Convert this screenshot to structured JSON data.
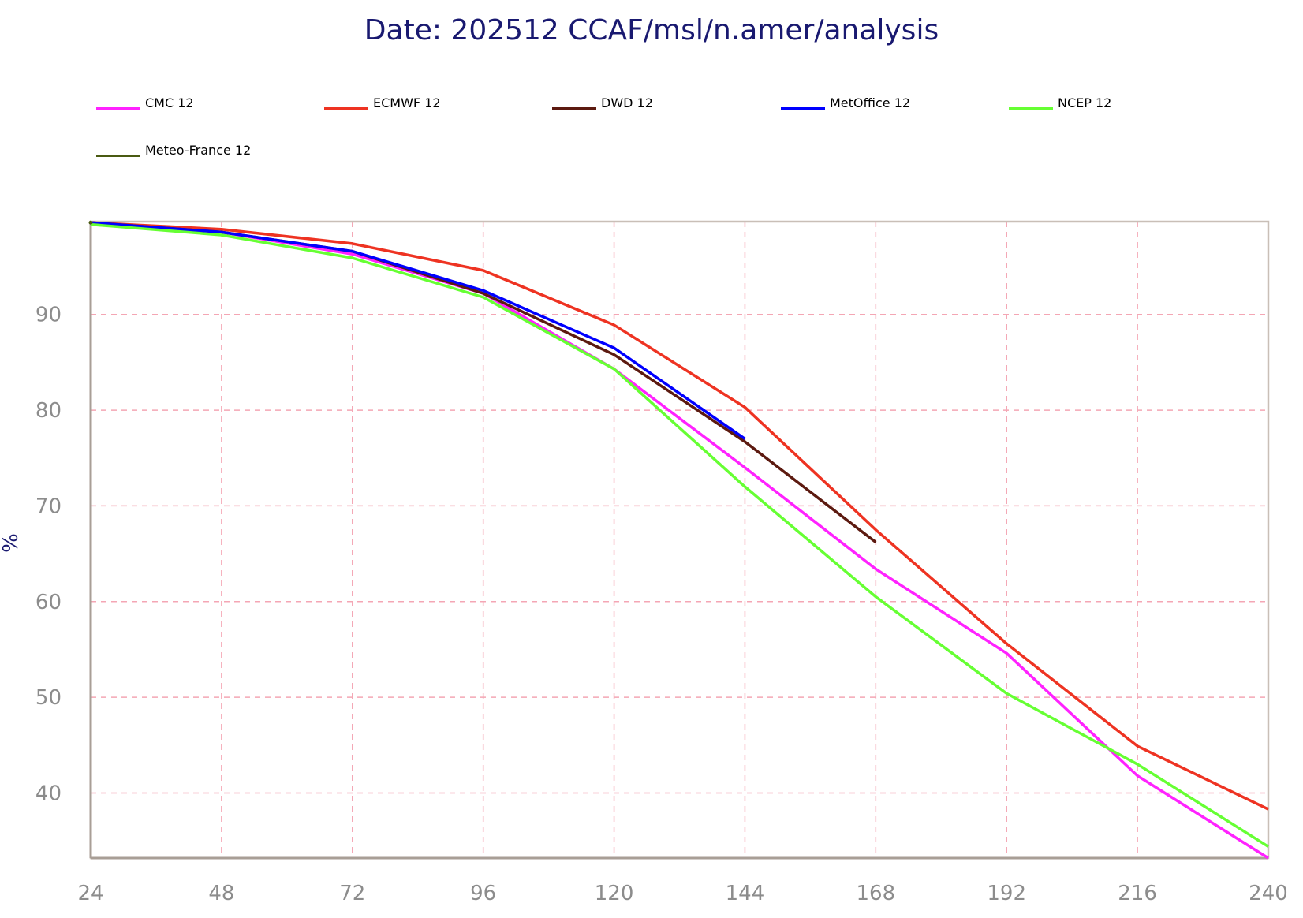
{
  "chart_data": {
    "type": "line",
    "title": "Date: 202512 CCAF/msl/n.amer/analysis",
    "xlabel": "",
    "ylabel": "%",
    "xlim": [
      24,
      240
    ],
    "ylim": [
      33.2,
      99.7
    ],
    "x_ticks": [
      24,
      48,
      72,
      96,
      120,
      144,
      168,
      192,
      216,
      240
    ],
    "y_ticks": [
      40,
      50,
      60,
      70,
      80,
      90
    ],
    "grid": true,
    "legend_position": "top",
    "series": [
      {
        "name": "CMC 12",
        "color": "#ff22ff",
        "x": [
          24,
          48,
          72,
          96,
          120,
          144,
          168,
          192,
          216,
          240
        ],
        "values": [
          99.5,
          98.6,
          96.3,
          92.2,
          84.3,
          74.0,
          63.4,
          54.6,
          41.8,
          33.2
        ]
      },
      {
        "name": "ECMWF 12",
        "color": "#ee3322",
        "x": [
          24,
          48,
          72,
          96,
          120,
          144,
          168,
          192,
          216,
          240
        ],
        "values": [
          99.6,
          98.9,
          97.4,
          94.6,
          88.9,
          80.3,
          67.5,
          55.6,
          44.9,
          38.3
        ]
      },
      {
        "name": "DWD 12",
        "color": "#5c1a10",
        "x": [
          24,
          48,
          72,
          96,
          120,
          144,
          168
        ],
        "values": [
          99.6,
          98.6,
          96.6,
          92.2,
          85.8,
          76.7,
          66.2
        ]
      },
      {
        "name": "MetOffice 12",
        "color": "#0000ff",
        "x": [
          24,
          48,
          72,
          96,
          120,
          144
        ],
        "values": [
          99.6,
          98.6,
          96.6,
          92.5,
          86.5,
          77.0
        ]
      },
      {
        "name": "NCEP 12",
        "color": "#66ff33",
        "x": [
          24,
          48,
          72,
          96,
          120,
          144,
          168,
          192,
          216,
          240
        ],
        "values": [
          99.4,
          98.3,
          95.9,
          91.8,
          84.3,
          72.0,
          60.5,
          50.4,
          43.0,
          34.4
        ]
      },
      {
        "name": "Meteo-France 12",
        "color": "#4a5a12",
        "x": [
          24
        ],
        "values": [
          99.6
        ]
      }
    ]
  }
}
